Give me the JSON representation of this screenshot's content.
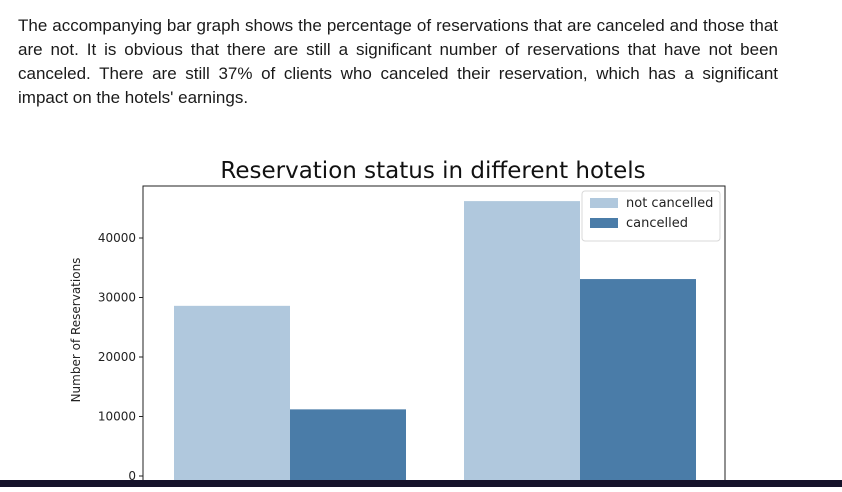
{
  "paragraph": "The accompanying bar graph shows the percentage of reservations that are canceled and those that are not. It is obvious that there are still a significant number of reservations that have not been canceled. There are still 37% of clients who canceled their reservation, which has a significant impact on the hotels' earnings.",
  "chart_data": {
    "type": "bar",
    "title": "Reservation status in different hotels",
    "xlabel": "",
    "ylabel": "Number of Reservations",
    "categories": [
      "",
      ""
    ],
    "series": [
      {
        "name": "not cancelled",
        "values": [
          28600,
          46200
        ],
        "color": "#b0c8dd"
      },
      {
        "name": "cancelled",
        "values": [
          11200,
          33100
        ],
        "color": "#4a7ca8"
      }
    ],
    "yticks": [
      0,
      10000,
      20000,
      30000,
      40000
    ],
    "ylim": [
      0,
      48500
    ],
    "legend": "top-right",
    "grid": false
  }
}
